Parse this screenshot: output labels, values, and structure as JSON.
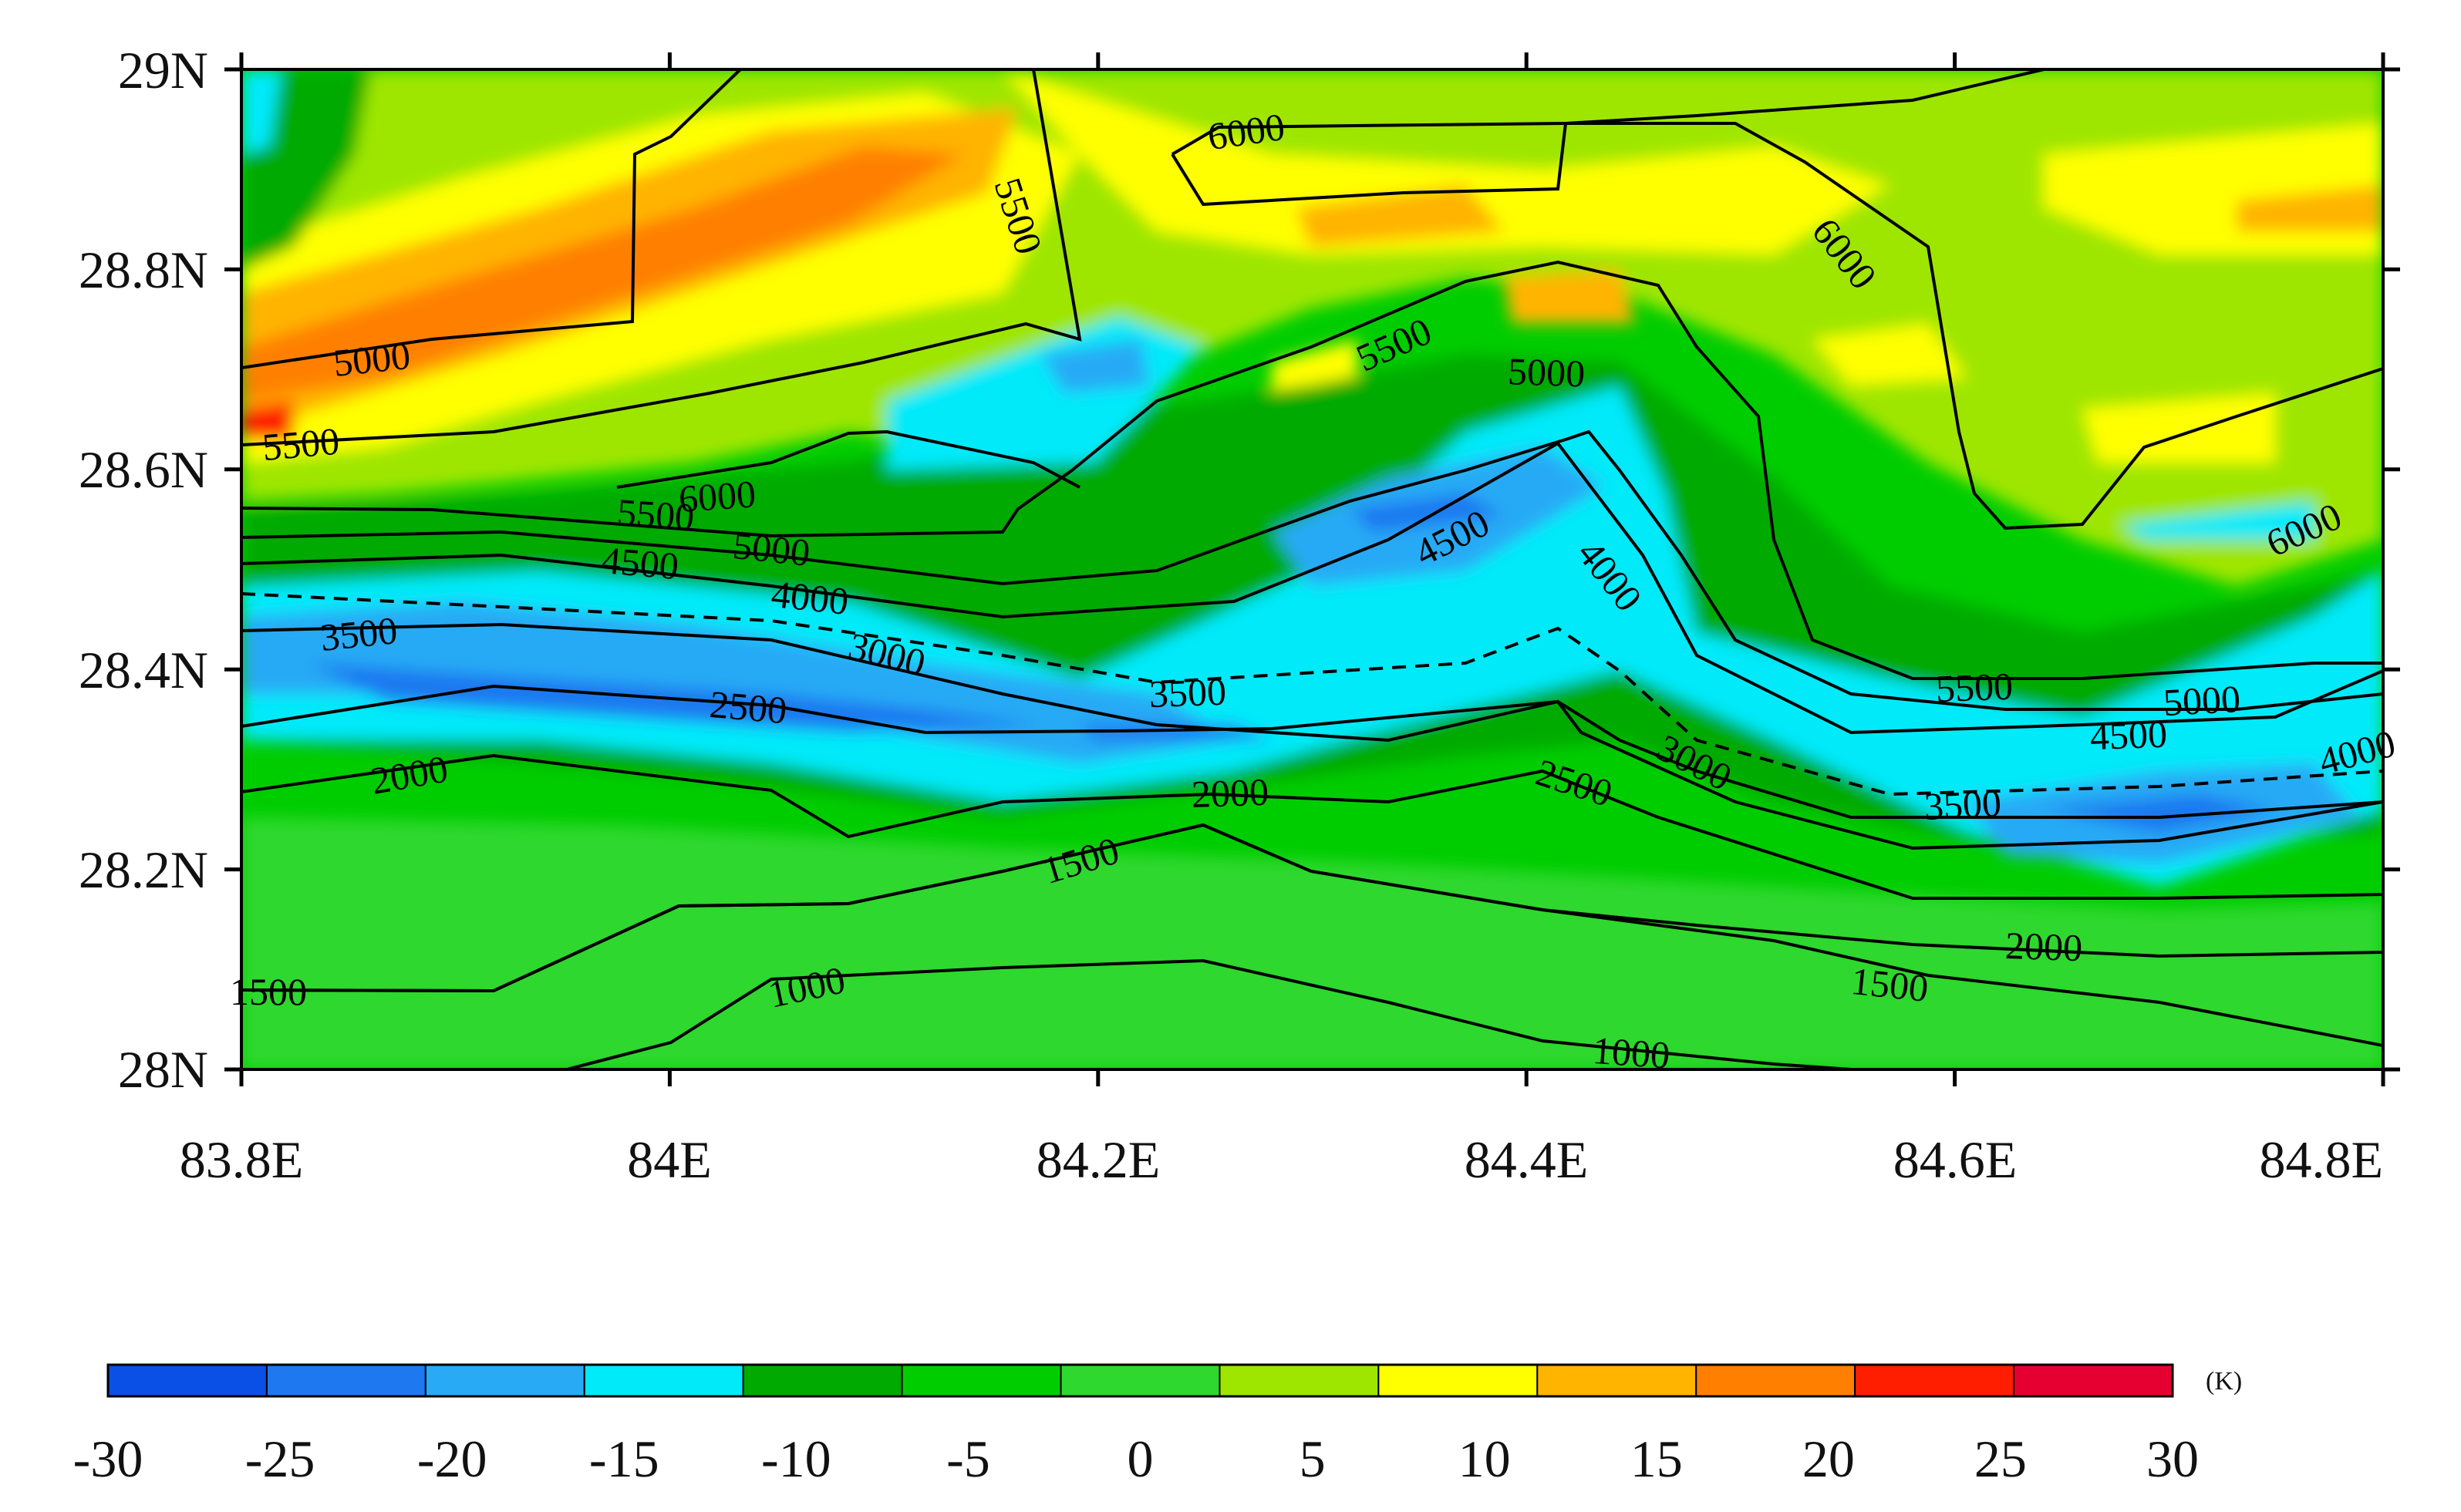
{
  "map": {
    "x_ticks": [
      "83.8E",
      "84E",
      "84.2E",
      "84.4E",
      "84.6E",
      "84.8E"
    ],
    "y_ticks": [
      "28N",
      "28.2N",
      "28.4N",
      "28.6N",
      "28.8N",
      "29N"
    ],
    "lon_range": [
      83.8,
      84.8
    ],
    "lat_range": [
      28.0,
      29.0
    ]
  },
  "colorbar": {
    "ticks": [
      "-30",
      "-25",
      "-20",
      "-15",
      "-10",
      "-5",
      "0",
      "5",
      "10",
      "15",
      "20",
      "25",
      "30"
    ],
    "unit": "(K)",
    "colors": [
      "#0a50e6",
      "#1e78f0",
      "#28aaf5",
      "#00eafa",
      "#00aa00",
      "#00cd00",
      "#2fd82f",
      "#9ee600",
      "#ffff00",
      "#ffb400",
      "#ff8000",
      "#ff1e00",
      "#e60032"
    ]
  },
  "contour_labels": [
    "6000",
    "5500",
    "6000",
    "5000",
    "5500",
    "5500",
    "5000",
    "5500",
    "6000",
    "5000",
    "4500",
    "4500",
    "4000",
    "4000",
    "3500",
    "3000",
    "3500",
    "2500",
    "3500",
    "3000",
    "2500",
    "5500",
    "5000",
    "4500",
    "4000",
    "6000",
    "3500",
    "2000",
    "2000",
    "1500",
    "2000",
    "1500",
    "1000",
    "1500",
    "1000"
  ]
}
